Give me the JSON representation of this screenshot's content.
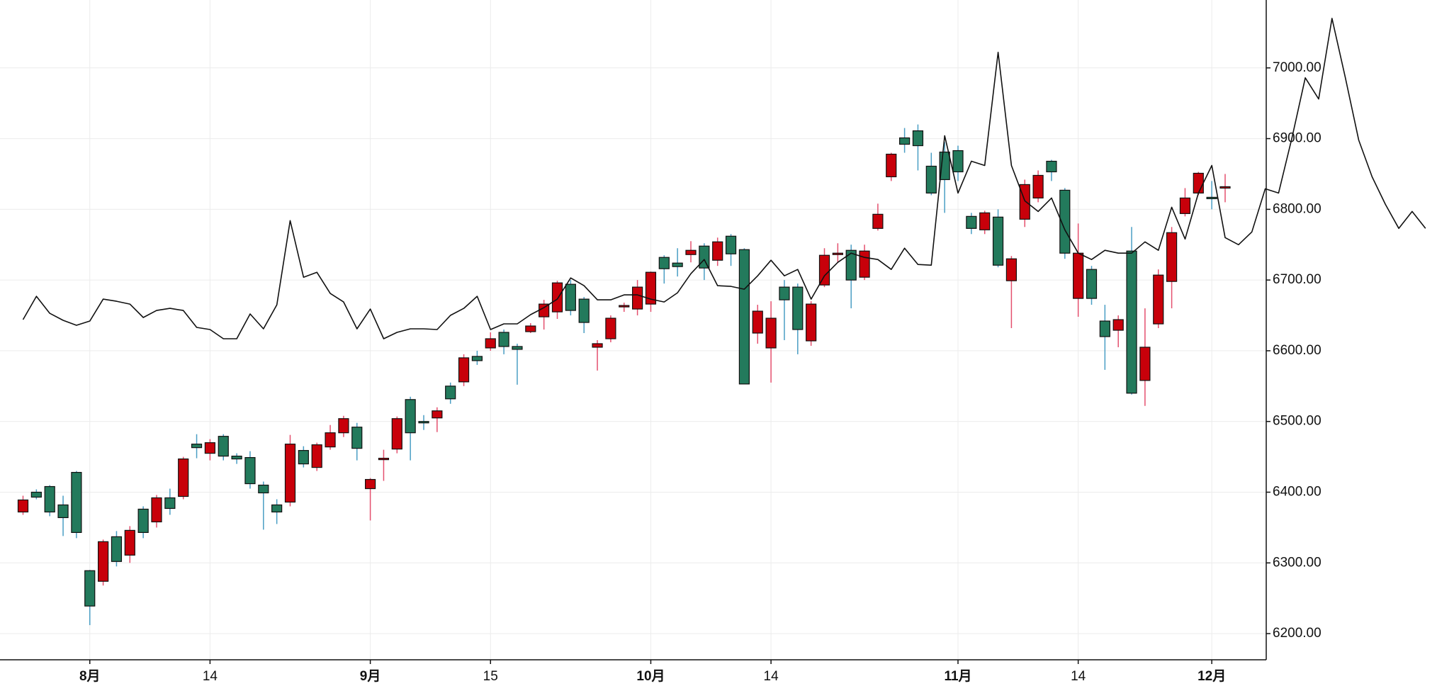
{
  "chart_data": {
    "type": "candlestick",
    "categories": [
      null,
      null,
      null,
      null,
      null,
      "8月",
      null,
      null,
      null,
      null,
      null,
      null,
      null,
      null,
      "14",
      null,
      null,
      null,
      null,
      null,
      null,
      null,
      null,
      null,
      null,
      null,
      "9月",
      null,
      null,
      null,
      null,
      null,
      null,
      null,
      null,
      "15",
      null,
      null,
      null,
      null,
      null,
      null,
      null,
      null,
      null,
      null,
      null,
      "10月",
      null,
      null,
      null,
      null,
      null,
      null,
      null,
      null,
      "14",
      null,
      null,
      null,
      null,
      null,
      null,
      null,
      null,
      null,
      null,
      null,
      null,
      null,
      "11月",
      null,
      null,
      null,
      null,
      null,
      null,
      null,
      null,
      "14",
      null,
      null,
      null,
      null,
      null,
      null,
      null,
      null,
      null,
      "12月",
      null,
      null,
      null,
      null,
      null,
      null,
      null,
      null,
      null,
      null,
      null,
      null,
      null,
      null,
      null,
      null
    ],
    "open": [
      6372,
      6400,
      6408,
      6382,
      6428,
      6289,
      6274,
      6337,
      6311,
      6376,
      6358,
      6392,
      6394,
      6468,
      6455,
      6479,
      6451,
      6449,
      6410,
      6382,
      6386,
      6459,
      6435,
      6464,
      6484,
      6492,
      6405,
      6447,
      6461,
      6531,
      6500,
      6505,
      6550,
      6556,
      6592,
      6604,
      6626,
      6606,
      6627,
      6648,
      6655,
      6694,
      6673,
      6605,
      6617,
      6663,
      6659,
      6666,
      6732,
      6724,
      6736,
      6748,
      6728,
      6762,
      6743,
      6625,
      6604,
      6690,
      6690,
      6614,
      6693,
      6737,
      6742,
      6704,
      6773,
      6846,
      6901,
      6911,
      6861,
      6881,
      6883,
      6790,
      6771,
      6789,
      6699,
      6786,
      6816,
      6868,
      6827,
      6674,
      6715,
      6642,
      6629,
      6741,
      6558,
      6638,
      6698,
      6794,
      6823,
      6817,
      6831,
      null,
      null,
      null,
      null,
      null,
      null,
      null,
      null,
      null,
      null,
      null,
      null,
      null,
      null,
      null
    ],
    "high": [
      6395,
      6404,
      6410,
      6395,
      6430,
      6290,
      6333,
      6345,
      6352,
      6380,
      6396,
      6405,
      6450,
      6482,
      6475,
      6482,
      6455,
      6458,
      6415,
      6390,
      6481,
      6465,
      6470,
      6495,
      6508,
      6498,
      6420,
      6460,
      6507,
      6535,
      6509,
      6520,
      6555,
      6595,
      6600,
      6626,
      6630,
      6610,
      6639,
      6672,
      6699,
      6700,
      6676,
      6615,
      6650,
      6668,
      6700,
      6712,
      6735,
      6745,
      6755,
      6752,
      6760,
      6765,
      6745,
      6665,
      6670,
      6700,
      6695,
      6670,
      6745,
      6752,
      6750,
      6750,
      6808,
      6880,
      6915,
      6920,
      6880,
      6895,
      6890,
      6795,
      6798,
      6800,
      6734,
      6842,
      6855,
      6870,
      6830,
      6780,
      6720,
      6665,
      6650,
      6775,
      6660,
      6715,
      6775,
      6830,
      6853,
      6840,
      6850,
      null,
      null,
      null,
      null,
      null,
      null,
      null,
      null,
      null,
      null,
      null,
      null,
      null,
      null,
      null
    ],
    "low": [
      6368,
      6390,
      6366,
      6338,
      6335,
      6212,
      6268,
      6295,
      6300,
      6335,
      6350,
      6368,
      6390,
      6448,
      6445,
      6445,
      6440,
      6405,
      6347,
      6355,
      6380,
      6435,
      6430,
      6460,
      6478,
      6445,
      6360,
      6416,
      6455,
      6445,
      6488,
      6485,
      6525,
      6550,
      6580,
      6600,
      6595,
      6552,
      6625,
      6630,
      6645,
      6650,
      6625,
      6572,
      6612,
      6655,
      6650,
      6655,
      6695,
      6705,
      6725,
      6700,
      6720,
      6720,
      6553,
      6610,
      6555,
      6615,
      6595,
      6607,
      6690,
      6725,
      6660,
      6700,
      6770,
      6840,
      6880,
      6855,
      6820,
      6795,
      6840,
      6765,
      6765,
      6718,
      6632,
      6775,
      6810,
      6840,
      6730,
      6648,
      6665,
      6573,
      6605,
      6538,
      6522,
      6632,
      6660,
      6790,
      6820,
      6800,
      6810,
      null,
      null,
      null,
      null,
      null,
      null,
      null,
      null,
      null,
      null,
      null,
      null,
      null,
      null,
      null
    ],
    "close": [
      6389,
      6393,
      6372,
      6364,
      6343,
      6239,
      6330,
      6302,
      6346,
      6343,
      6392,
      6377,
      6447,
      6463,
      6470,
      6451,
      6447,
      6412,
      6399,
      6372,
      6468,
      6440,
      6467,
      6484,
      6504,
      6462,
      6418,
      6448,
      6504,
      6484,
      6498,
      6515,
      6532,
      6590,
      6586,
      6617,
      6606,
      6602,
      6635,
      6666,
      6696,
      6657,
      6640,
      6610,
      6646,
      6664,
      6690,
      6711,
      6716,
      6719,
      6742,
      6717,
      6754,
      6737,
      6553,
      6656,
      6646,
      6672,
      6630,
      6666,
      6735,
      6738,
      6700,
      6741,
      6793,
      6878,
      6892,
      6890,
      6823,
      6842,
      6853,
      6773,
      6795,
      6721,
      6730,
      6835,
      6848,
      6853,
      6738,
      6738,
      6674,
      6620,
      6644,
      6540,
      6605,
      6707,
      6767,
      6816,
      6851,
      6816,
      6832,
      null,
      null,
      null,
      null,
      null,
      null,
      null,
      null,
      null,
      null,
      null,
      null,
      null,
      null,
      null
    ],
    "up_color": "#c8000a",
    "down_color": "#237a5c",
    "line": {
      "color": "#111111",
      "values": [
        6644,
        6677,
        6653,
        6643,
        6636,
        6642,
        6673,
        6670,
        6666,
        6647,
        6657,
        6660,
        6657,
        6633,
        6630,
        6617,
        6617,
        6652,
        6631,
        6665,
        6784,
        6704,
        6711,
        6681,
        6669,
        6631,
        6659,
        6617,
        6626,
        6631,
        6631,
        6630,
        6650,
        6660,
        6677,
        6630,
        6638,
        6638,
        6651,
        6661,
        6673,
        6703,
        6692,
        6672,
        6672,
        6679,
        6679,
        6673,
        6669,
        6682,
        6709,
        6729,
        6692,
        6691,
        6687,
        6706,
        6728,
        6706,
        6715,
        6673,
        6706,
        6725,
        6738,
        6732,
        6729,
        6715,
        6745,
        6722,
        6721,
        6904,
        6823,
        6868,
        6862,
        7022,
        6862,
        6812,
        6797,
        6816,
        6771,
        6738,
        6729,
        6742,
        6738,
        6738,
        6754,
        6742,
        6803,
        6758,
        6823,
        6862,
        6760,
        6750,
        6768,
        6829,
        6823,
        6901,
        6986,
        6956,
        7070,
        6986,
        6898,
        6846,
        6807,
        6773,
        6797,
        6773
      ]
    },
    "ylim": [
      6163,
      7096
    ],
    "yticks": [
      {
        "value": 6200,
        "label": "6200.00"
      },
      {
        "value": 6300,
        "label": "6300.00"
      },
      {
        "value": 6400,
        "label": "6400.00"
      },
      {
        "value": 6500,
        "label": "6500.00"
      },
      {
        "value": 6600,
        "label": "6600.00"
      },
      {
        "value": 6700,
        "label": "6700.00"
      },
      {
        "value": 6800,
        "label": "6800.00"
      },
      {
        "value": 6900,
        "label": "6900.00"
      },
      {
        "value": 7000,
        "label": "7000.00"
      }
    ],
    "grid": true
  }
}
